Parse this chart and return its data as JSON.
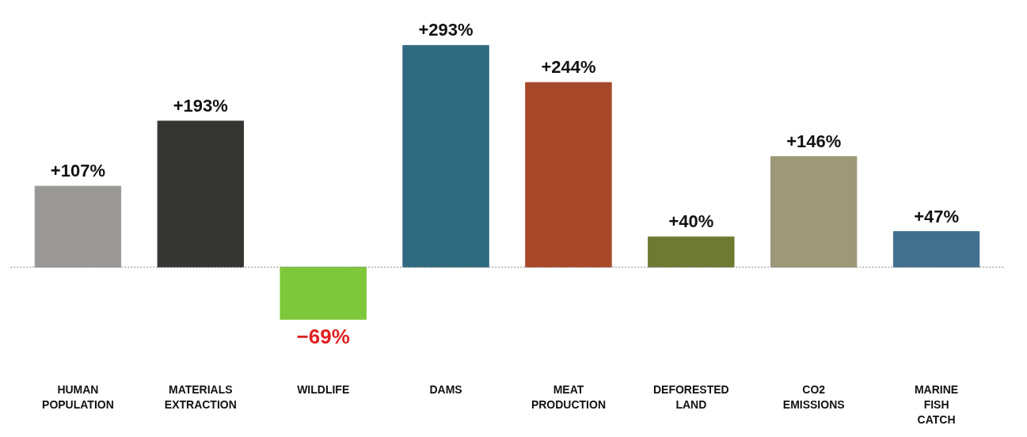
{
  "chart_data": {
    "type": "bar",
    "categories": [
      "HUMAN POPULATION",
      "MATERIALS EXTRACTION",
      "WILDLIFE",
      "DAMS",
      "MEAT PRODUCTION",
      "DEFORESTED LAND",
      "CO2 EMISSIONS",
      "MARINE FISH CATCH"
    ],
    "values": [
      107,
      193,
      -69,
      293,
      244,
      40,
      146,
      47
    ],
    "colors": [
      "#9a9896",
      "#353532",
      "#7dc83a",
      "#2f6a80",
      "#a8482a",
      "#6e7a32",
      "#9c9878",
      "#41708e"
    ],
    "value_labels": [
      "+107%",
      "+193%",
      "−69%",
      "+293%",
      "+244%",
      "+40%",
      "+146%",
      "+47%"
    ],
    "ref_lines": [
      {
        "axis": "y",
        "value": 0,
        "color": "#888888",
        "line_style": "dashed"
      }
    ],
    "grid": false
  }
}
